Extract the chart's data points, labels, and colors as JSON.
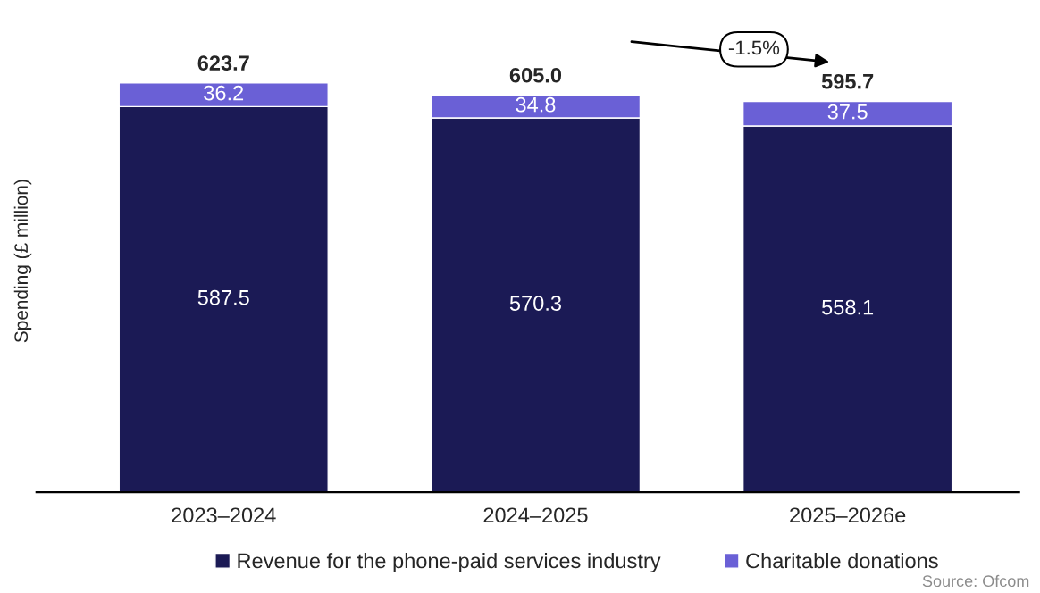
{
  "chart_data": {
    "type": "bar",
    "stacked": true,
    "ylabel": "Spending (£ million)",
    "categories": [
      "2023–2024",
      "2024–2025",
      "2025–2026e"
    ],
    "series": [
      {
        "name": "Revenue for the phone-paid services industry",
        "color": "#1b1a55",
        "values": [
          587.5,
          570.3,
          558.1
        ]
      },
      {
        "name": "Charitable donations",
        "color": "#6a60d6",
        "values": [
          36.2,
          34.8,
          37.5
        ]
      }
    ],
    "data_labels": true,
    "totals": [
      "623.7",
      "605.0",
      "595.7"
    ],
    "tick_labels": "x",
    "legend": "bottom",
    "grid": false,
    "annotations": [
      "-1.5%",
      "Source: Ofcom"
    ]
  }
}
